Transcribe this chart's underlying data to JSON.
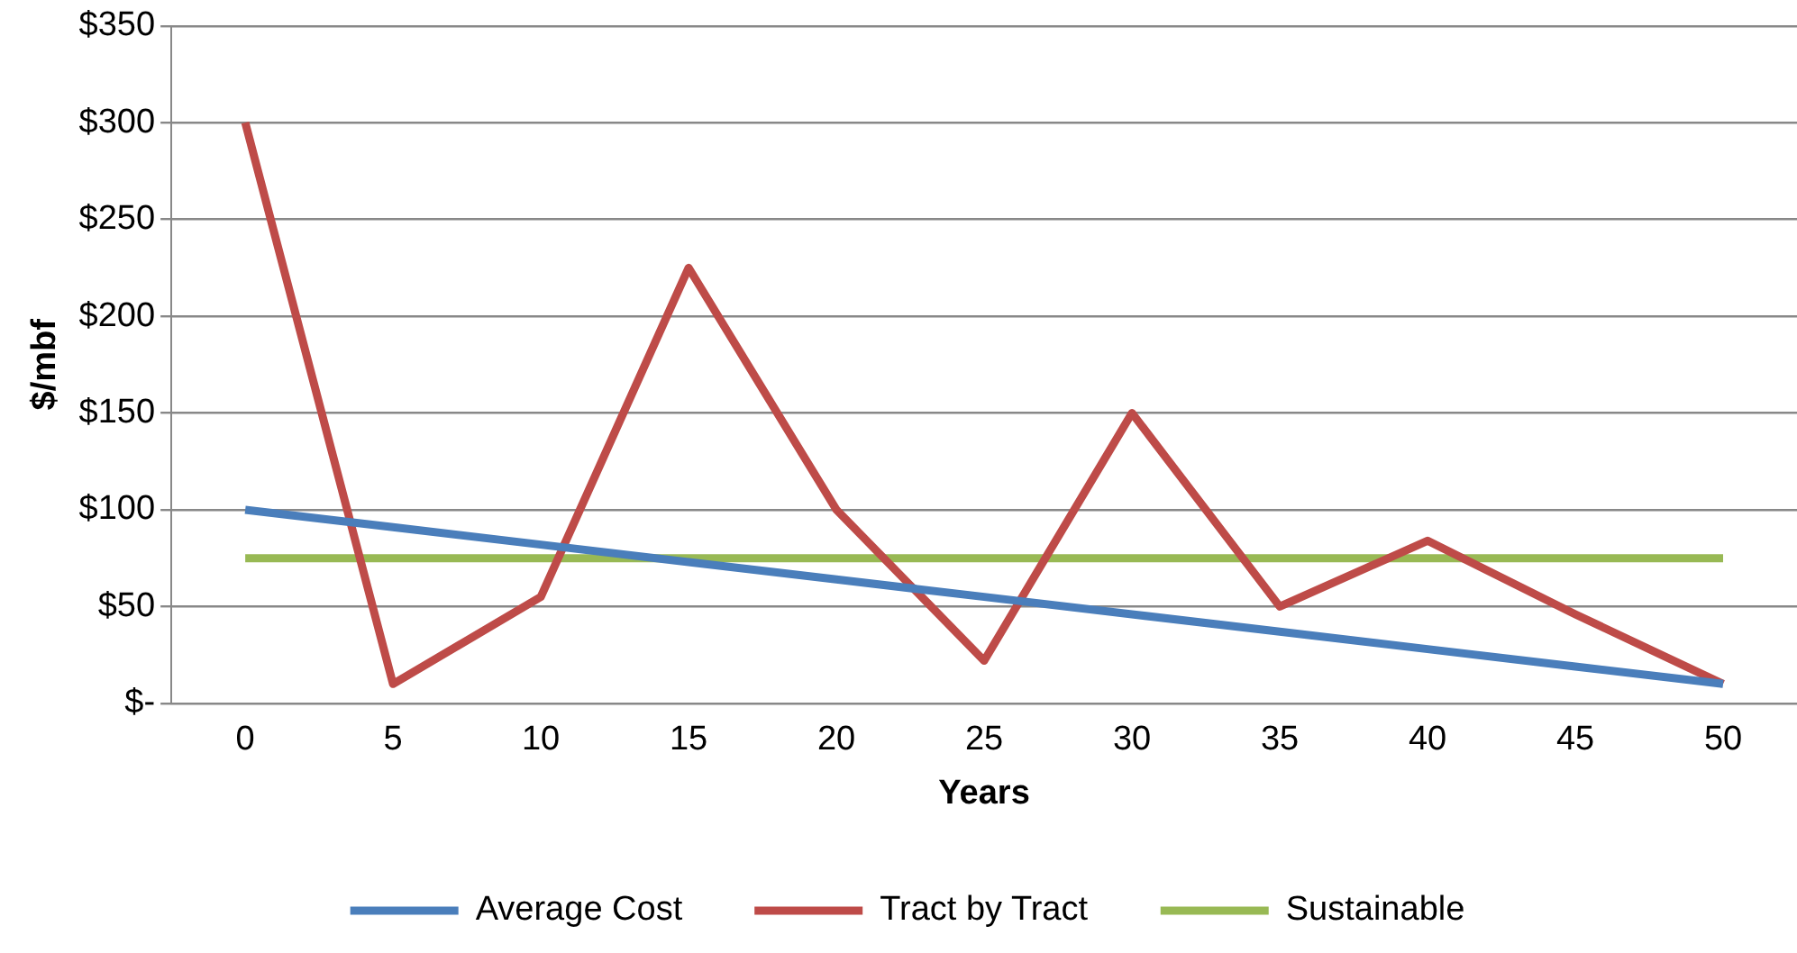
{
  "chart_data": {
    "type": "line",
    "xlabel": "Years",
    "ylabel": "$/mbf",
    "categories": [
      "0",
      "5",
      "10",
      "15",
      "20",
      "25",
      "30",
      "35",
      "40",
      "45",
      "50"
    ],
    "series": [
      {
        "name": "Average Cost",
        "color": "#4a7ebb",
        "values": [
          100,
          91,
          82,
          73,
          64,
          55,
          46,
          37,
          28,
          19,
          10
        ]
      },
      {
        "name": "Tract by Tract",
        "color": "#be4b48",
        "values": [
          300,
          10,
          55,
          225,
          100,
          22,
          150,
          50,
          84,
          46,
          10
        ]
      },
      {
        "name": "Sustainable",
        "color": "#98b954",
        "values": [
          75,
          75,
          75,
          75,
          75,
          75,
          75,
          75,
          75,
          75,
          75
        ]
      }
    ],
    "ylim": [
      0,
      350
    ],
    "yticks": [
      {
        "value": 0,
        "label": "$-"
      },
      {
        "value": 50,
        "label": "$50"
      },
      {
        "value": 100,
        "label": "$100"
      },
      {
        "value": 150,
        "label": "$150"
      },
      {
        "value": 200,
        "label": "$200"
      },
      {
        "value": 250,
        "label": "$250"
      },
      {
        "value": 300,
        "label": "$300"
      },
      {
        "value": 350,
        "label": "$350"
      }
    ],
    "grid": "y",
    "legend": "bottom",
    "marker": "none",
    "line_style": "solid"
  }
}
